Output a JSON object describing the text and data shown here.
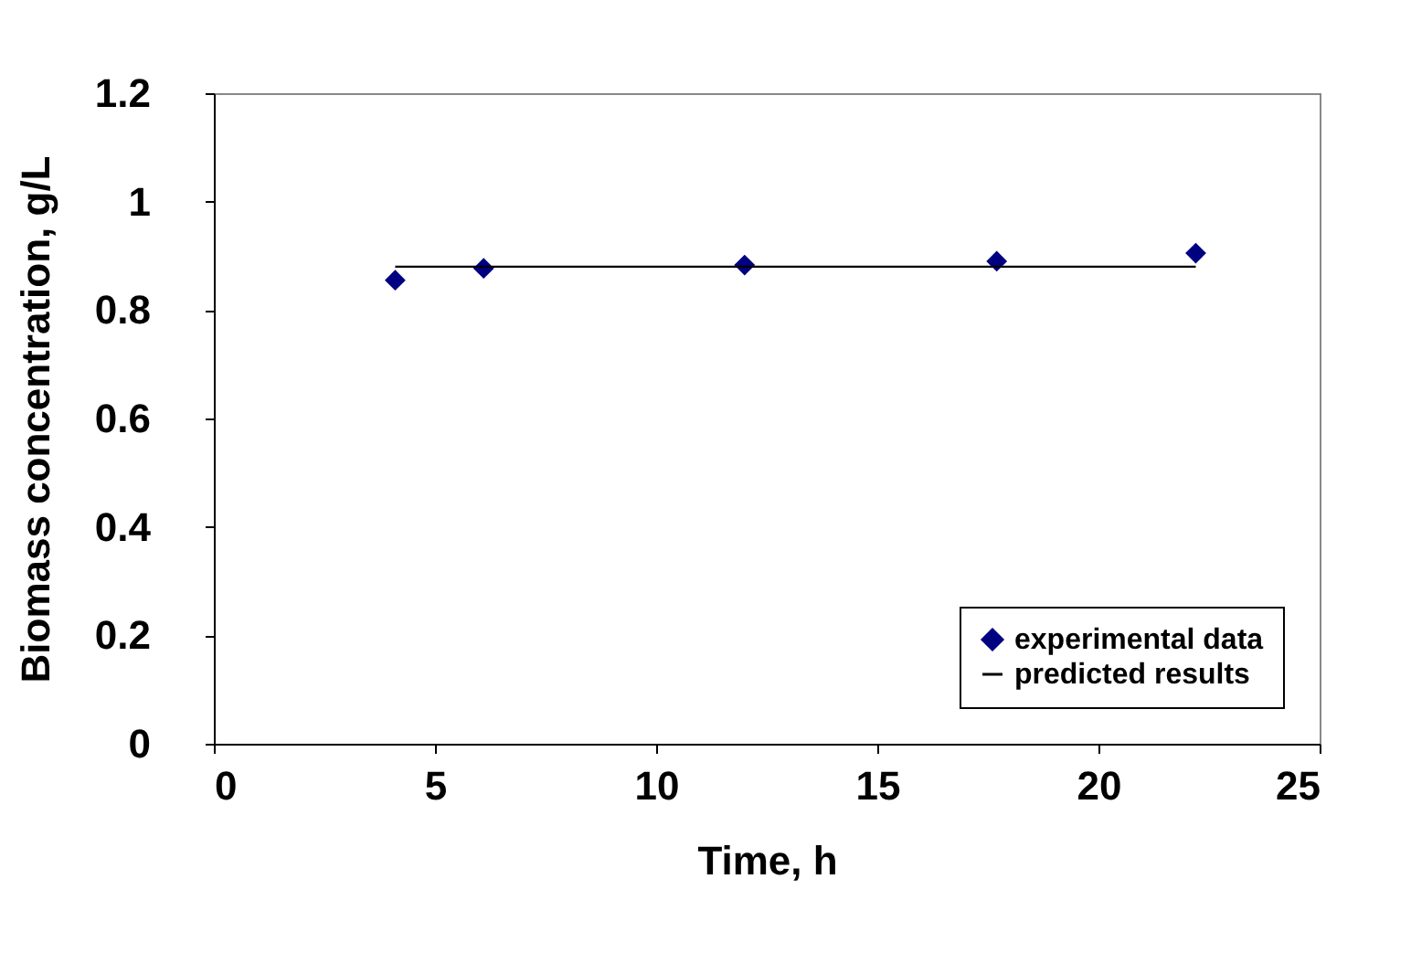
{
  "chart_data": {
    "type": "scatter",
    "xlabel": "Time, h",
    "ylabel": "Biomass concentration, g/L",
    "xlim": [
      0,
      25
    ],
    "xticks": [
      0,
      5,
      10,
      15,
      20,
      25
    ],
    "ylim": [
      0,
      1.2
    ],
    "yticks": [
      {
        "value": 0,
        "label": "0"
      },
      0.2,
      0.4,
      0.6,
      0.8,
      {
        "value": 1,
        "label": "1"
      },
      1.2
    ],
    "grid": false,
    "legend": "bottom right",
    "series": [
      {
        "name": "experimental data",
        "marker": "diamond",
        "color": "#000080",
        "x": [
          4.1,
          6.1,
          12.0,
          17.7,
          22.2
        ],
        "values": [
          0.855,
          0.877,
          0.883,
          0.89,
          0.905
        ]
      },
      {
        "name": "predicted results",
        "type": "line",
        "marker": "none",
        "line_style": "solid",
        "color": "#000000",
        "x": [
          4.1,
          22.2
        ],
        "values": [
          0.88,
          0.88
        ]
      }
    ]
  }
}
